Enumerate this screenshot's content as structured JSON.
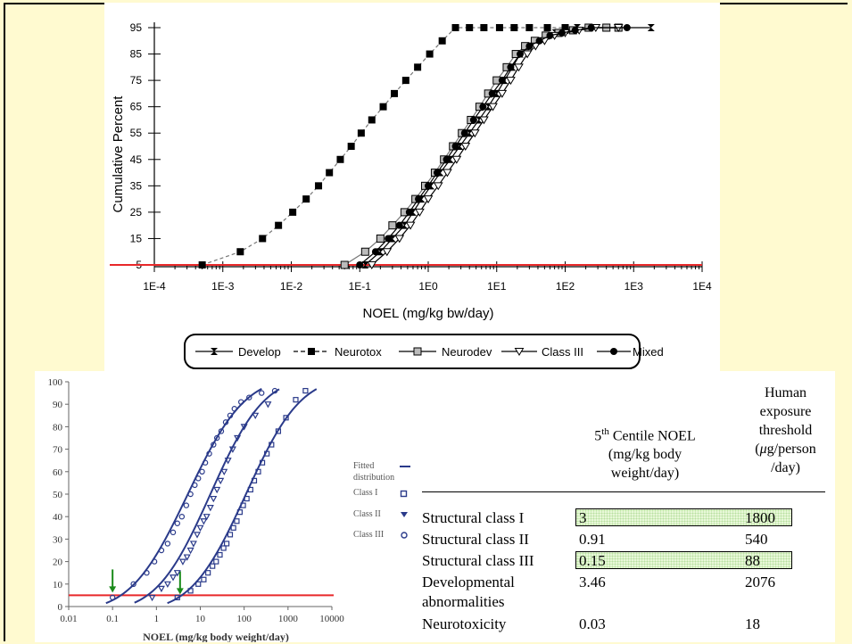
{
  "top_chart": {
    "chart_data": {
      "type": "line",
      "xlabel": "NOEL (mg/kg bw/day)",
      "ylabel": "Cumulative Percent",
      "x_scale": "log",
      "x_ticks": [
        "1E-4",
        "1E-3",
        "1E-2",
        "1E-1",
        "1E0",
        "1E1",
        "1E2",
        "1E3",
        "1E4"
      ],
      "y_ticks": [
        "5",
        "15",
        "25",
        "35",
        "45",
        "55",
        "65",
        "75",
        "85",
        "95"
      ],
      "xlim": [
        0.0001,
        10000
      ],
      "ylim": [
        5,
        95
      ],
      "reference_line": {
        "y": 5,
        "color": "#e8282a"
      },
      "legend_position": "bottom",
      "series": [
        {
          "name": "Develop",
          "marker": "bowtie",
          "x": [
            0.12,
            0.2,
            0.3,
            0.45,
            0.6,
            0.8,
            1.1,
            1.5,
            2.1,
            2.9,
            4.0,
            5.5,
            7.5,
            10,
            13,
            17,
            22,
            29,
            38,
            52,
            72,
            100,
            150,
            230,
            400,
            1800
          ],
          "y": [
            5,
            10,
            15,
            20,
            25,
            30,
            35,
            40,
            45,
            50,
            55,
            60,
            65,
            70,
            75,
            80,
            85,
            88,
            90,
            92,
            93,
            94,
            95,
            95,
            95,
            95
          ]
        },
        {
          "name": "Neurotox",
          "marker": "filled-square",
          "x": [
            0.0005,
            0.0018,
            0.0038,
            0.0065,
            0.0105,
            0.0165,
            0.025,
            0.036,
            0.052,
            0.075,
            0.105,
            0.15,
            0.22,
            0.32,
            0.47,
            0.7,
            1.05,
            1.6,
            2.5,
            4.0,
            6.5,
            11,
            18,
            30,
            55,
            100,
            220
          ],
          "y": [
            5,
            10,
            15,
            20,
            25,
            30,
            35,
            40,
            45,
            50,
            55,
            60,
            65,
            70,
            75,
            80,
            85,
            90,
            95,
            95,
            95,
            95,
            95,
            95,
            95,
            95,
            95
          ]
        },
        {
          "name": "Neurodev",
          "marker": "open-square",
          "x": [
            0.06,
            0.12,
            0.2,
            0.3,
            0.45,
            0.65,
            0.9,
            1.25,
            1.7,
            2.3,
            3.1,
            4.2,
            5.6,
            7.5,
            10,
            14,
            19,
            26,
            36,
            52,
            80,
            130,
            220,
            400,
            600
          ],
          "y": [
            5,
            10,
            15,
            20,
            25,
            30,
            35,
            40,
            45,
            50,
            55,
            60,
            65,
            70,
            75,
            80,
            85,
            88,
            90,
            92,
            93,
            94,
            95,
            95,
            95
          ]
        },
        {
          "name": "Class III",
          "marker": "triangle-down",
          "x": [
            0.15,
            0.25,
            0.38,
            0.55,
            0.75,
            1.0,
            1.4,
            1.9,
            2.6,
            3.5,
            4.8,
            6.5,
            8.8,
            12,
            16,
            21,
            28,
            37,
            50,
            70,
            100,
            160,
            280,
            600
          ],
          "y": [
            5,
            10,
            15,
            20,
            25,
            30,
            35,
            40,
            45,
            50,
            55,
            60,
            65,
            70,
            75,
            80,
            85,
            88,
            90,
            92,
            93,
            94,
            95,
            95
          ]
        },
        {
          "name": "Mixed",
          "marker": "filled-circle",
          "x": [
            0.1,
            0.17,
            0.26,
            0.38,
            0.53,
            0.72,
            1.0,
            1.35,
            1.85,
            2.5,
            3.4,
            4.6,
            6.3,
            8.6,
            12,
            16,
            22,
            30,
            42,
            60,
            90,
            140,
            240,
            800
          ],
          "y": [
            5,
            10,
            15,
            20,
            25,
            30,
            35,
            40,
            45,
            50,
            55,
            60,
            65,
            70,
            75,
            80,
            85,
            88,
            90,
            92,
            93,
            94,
            95,
            95
          ]
        }
      ]
    }
  },
  "bottom_chart": {
    "chart_data": {
      "type": "scatter",
      "xlabel": "NOEL (mg/kg body weight/day)",
      "x_scale": "log",
      "x_ticks": [
        "0.01",
        "0.1",
        "1",
        "10",
        "100",
        "1000",
        "10000"
      ],
      "y_ticks": [
        "0",
        "10",
        "20",
        "30",
        "40",
        "50",
        "60",
        "70",
        "80",
        "90",
        "100"
      ],
      "xlim": [
        0.01,
        10000
      ],
      "ylim": [
        0,
        100
      ],
      "reference_line": {
        "y": 5,
        "color": "#e8282a"
      },
      "legend": {
        "title": "Fitted distribution",
        "items": [
          "Class I",
          "Class II",
          "Class III"
        ]
      },
      "arrows_at_x": [
        0.1,
        3.46
      ],
      "series": [
        {
          "name": "Class III",
          "marker": "circle",
          "x": [
            0.1,
            0.3,
            0.6,
            0.9,
            1.3,
            1.8,
            2.4,
            3.0,
            3.8,
            4.8,
            6,
            7.5,
            9,
            11,
            13,
            16,
            20,
            24,
            30,
            38,
            48,
            60,
            85,
            130,
            250,
            500
          ],
          "y": [
            4,
            10,
            15,
            20,
            25,
            28,
            33,
            37,
            40,
            45,
            50,
            54,
            57,
            60,
            64,
            68,
            72,
            75,
            78,
            82,
            85,
            88,
            91,
            93,
            95,
            96
          ]
        },
        {
          "name": "Class II",
          "marker": "triangle-down",
          "x": [
            0.8,
            1.3,
            1.8,
            2.4,
            3.0,
            4.0,
            5,
            6,
            7,
            8.5,
            10,
            12,
            14,
            17,
            20,
            24,
            29,
            35,
            43,
            55,
            70,
            100,
            180,
            350
          ],
          "y": [
            4,
            8,
            10,
            13,
            15,
            20,
            22,
            25,
            28,
            32,
            35,
            38,
            40,
            44,
            48,
            52,
            56,
            60,
            65,
            70,
            75,
            80,
            85,
            90
          ]
        },
        {
          "name": "Class I",
          "marker": "square",
          "x": [
            3,
            6,
            9,
            12,
            15,
            19,
            23,
            28,
            34,
            40,
            48,
            57,
            68,
            80,
            95,
            115,
            140,
            170,
            210,
            260,
            330,
            420,
            600,
            900,
            1500,
            2500
          ],
          "y": [
            4,
            7,
            10,
            12,
            15,
            18,
            20,
            23,
            26,
            28,
            32,
            35,
            38,
            42,
            45,
            48,
            52,
            56,
            60,
            64,
            68,
            72,
            78,
            84,
            92,
            96
          ]
        }
      ],
      "fitted_curves": [
        {
          "name": "Class III",
          "median": 5.2,
          "sigma": 1.02
        },
        {
          "name": "Class II",
          "median": 17,
          "sigma": 0.96
        },
        {
          "name": "Class I",
          "median": 110,
          "sigma": 0.98
        }
      ]
    }
  },
  "table": {
    "header": {
      "col1_line1_main": "5",
      "col1_line1_sup": "th",
      "col1_line1_rest": " Centile NOEL",
      "col1_line2": "(mg/kg body",
      "col1_line3": "weight/day)",
      "col2_line1": "Human",
      "col2_line2": "exposure",
      "col2_line3": "threshold",
      "col2_line4_mu": "μ",
      "col2_line4_rest": "g/person",
      "col2_line5": "/day)",
      "col2_line4_open": "("
    },
    "rows": [
      {
        "label": "Structural class I",
        "noel": "3",
        "threshold": "1800",
        "highlight": true
      },
      {
        "label": "Structural class II",
        "noel": "0.91",
        "threshold": "540",
        "highlight": false
      },
      {
        "label": "Structural class III",
        "noel": "0.15",
        "threshold": "88",
        "highlight": true
      },
      {
        "label": "Developmental",
        "label2": "abnormalities",
        "noel": "3.46",
        "threshold": "2076",
        "highlight": false
      },
      {
        "label": "Neurotoxicity",
        "noel": "0.03",
        "threshold": "18",
        "highlight": false
      }
    ],
    "highlight_color": "#e8f8d8"
  }
}
